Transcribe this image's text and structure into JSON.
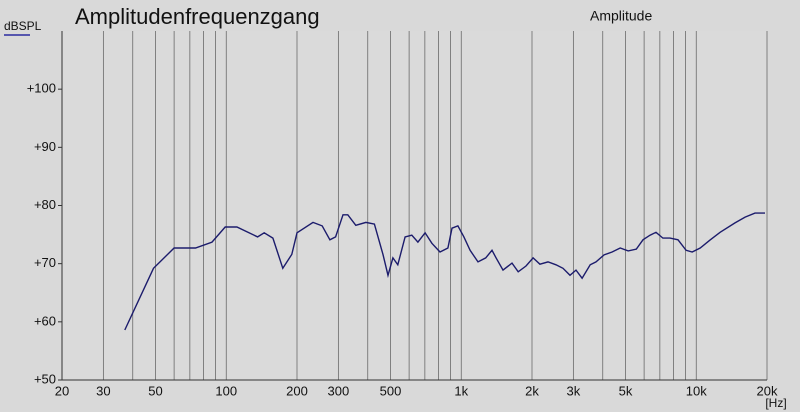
{
  "chart_data": {
    "type": "line",
    "title": "Amplitudenfrequenzgang",
    "y_label": "dBSPL",
    "x_unit": "[Hz]",
    "xscale": "log",
    "xlim": [
      20,
      20000
    ],
    "ylim": [
      50,
      110
    ],
    "xticks": [
      20,
      30,
      50,
      100,
      200,
      300,
      500,
      {
        "value": 1000,
        "label": "1k"
      },
      {
        "value": 2000,
        "label": "2k"
      },
      {
        "value": 3000,
        "label": "3k"
      },
      {
        "value": 5000,
        "label": "5k"
      },
      {
        "value": 10000,
        "label": "10k"
      },
      {
        "value": 20000,
        "label": "20k"
      }
    ],
    "x_minor_grid": [
      40,
      60,
      70,
      80,
      90,
      400,
      600,
      700,
      800,
      900,
      4000,
      6000,
      7000,
      8000,
      9000
    ],
    "yticks": [
      {
        "value": 50,
        "label": "+50"
      },
      {
        "value": 60,
        "label": "+60"
      },
      {
        "value": 70,
        "label": "+70"
      },
      {
        "value": 80,
        "label": "+80"
      },
      {
        "value": 90,
        "label": "+90"
      },
      {
        "value": 100,
        "label": "+100"
      }
    ],
    "grid": true,
    "legend": "top-right",
    "x": [
      37,
      49,
      60,
      74,
      87,
      99,
      111,
      136,
      145,
      158,
      174,
      190,
      200,
      234,
      256,
      276,
      292,
      314,
      329,
      356,
      393,
      427,
      465,
      488,
      512,
      537,
      577,
      616,
      654,
      702,
      750,
      812,
      877,
      913,
      968,
      1026,
      1090,
      1178,
      1271,
      1352,
      1407,
      1505,
      1644,
      1747,
      1886,
      2021,
      2160,
      2339,
      2530,
      2710,
      2903,
      3077,
      3267,
      3536,
      3744,
      4052,
      4384,
      4744,
      5134,
      5556,
      5932,
      6355,
      6740,
      7215,
      7729,
      8366,
      9050,
      9612,
      10390,
      11470,
      12630,
      14610,
      16130,
      17780,
      19620
    ],
    "series": [
      {
        "name": "Amplitude",
        "color": "#1c1c6c",
        "values": [
          58.6,
          69.2,
          72.7,
          72.7,
          73.7,
          76.3,
          76.3,
          74.6,
          75.3,
          74.4,
          69.2,
          71.6,
          75.3,
          77.1,
          76.5,
          74.1,
          74.6,
          78.4,
          78.4,
          76.6,
          77.1,
          76.8,
          71.5,
          68,
          71,
          69.8,
          74.6,
          74.9,
          73.7,
          75.3,
          73.5,
          72,
          72.7,
          76.1,
          76.5,
          74.6,
          72.3,
          70.3,
          71,
          72.3,
          71,
          68.9,
          70.1,
          68.6,
          69.6,
          71,
          69.9,
          70.3,
          69.8,
          69.2,
          68,
          68.9,
          67.5,
          69.8,
          70.3,
          71.5,
          72,
          72.7,
          72.2,
          72.5,
          74.1,
          74.9,
          75.4,
          74.4,
          74.4,
          74.1,
          72.3,
          72,
          72.7,
          74.1,
          75.4,
          77,
          78,
          78.7,
          78.7
        ]
      }
    ]
  }
}
